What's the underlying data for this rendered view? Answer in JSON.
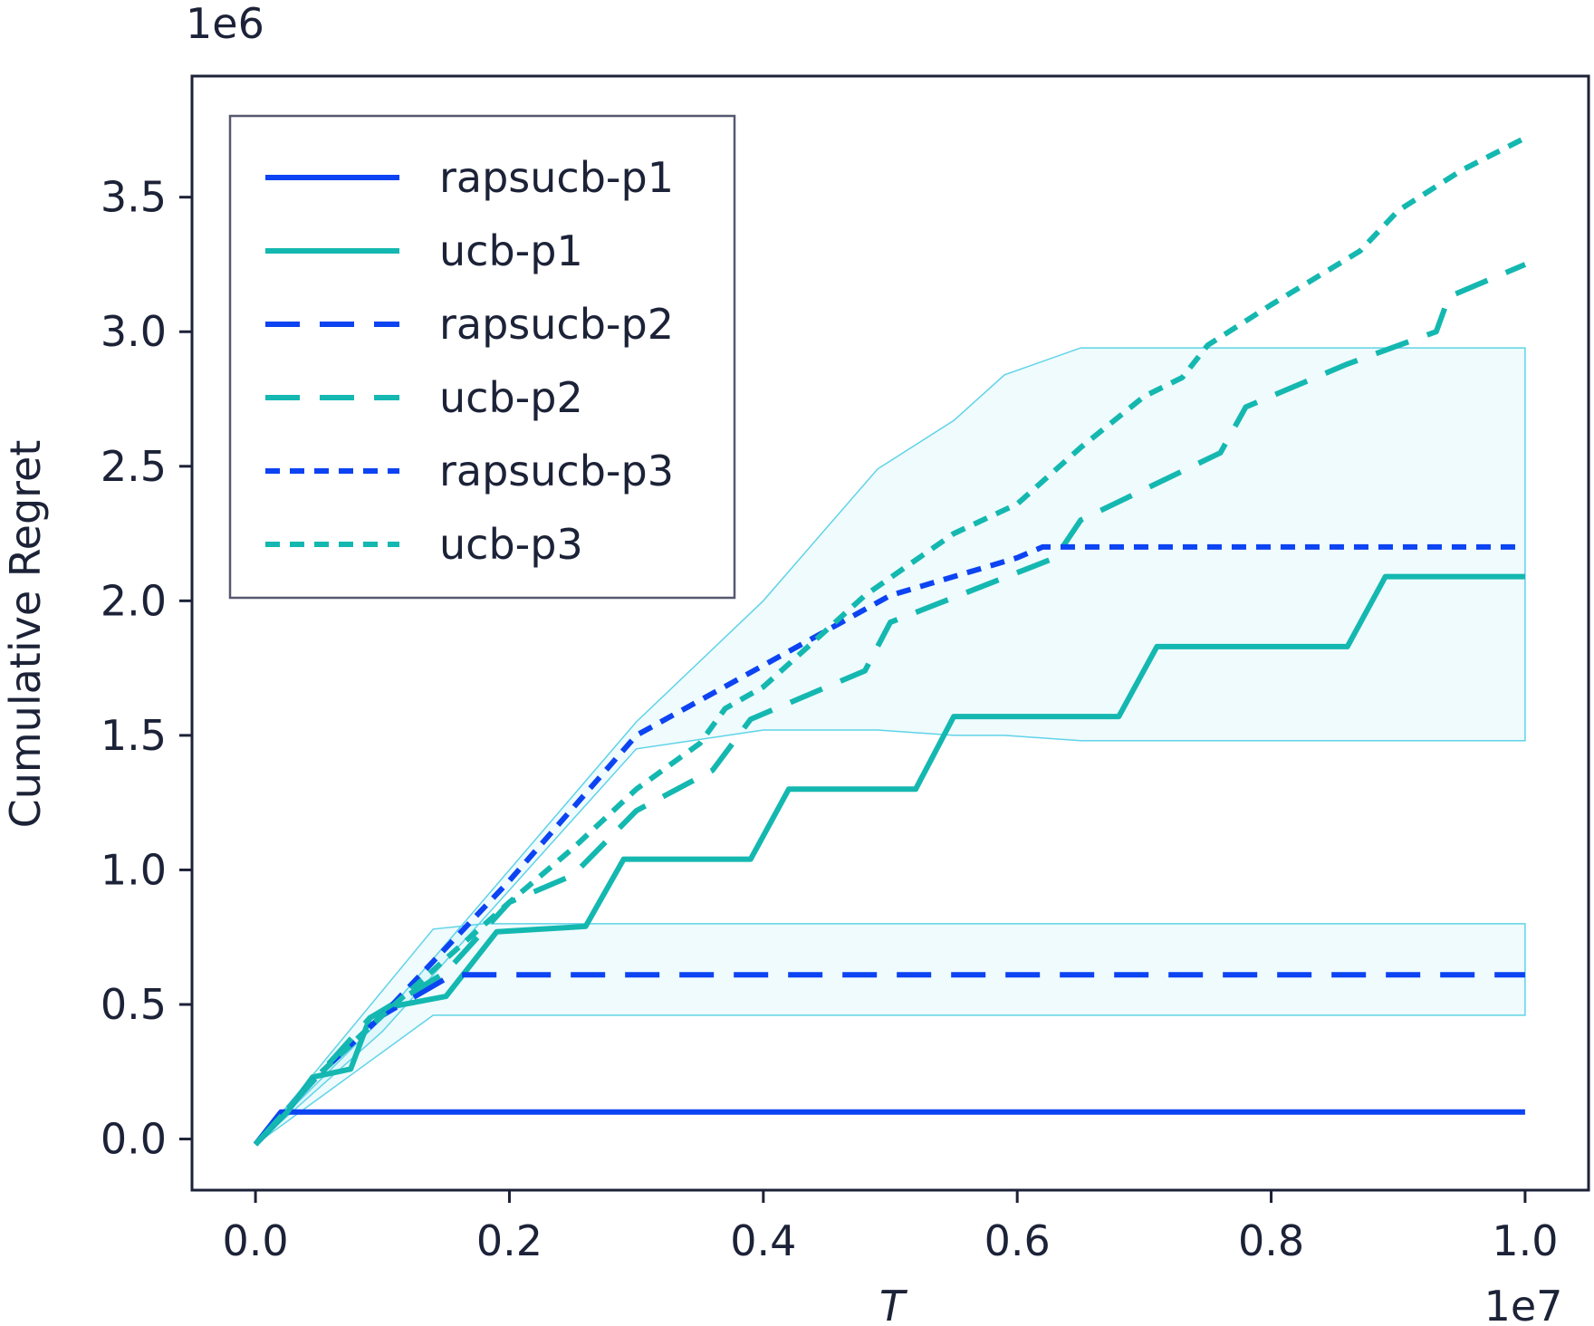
{
  "chart_data": {
    "type": "line",
    "title": "",
    "xlabel": "T",
    "ylabel": "Cumulative Regret",
    "x_offset_label": "1e7",
    "y_offset_label": "1e6",
    "xlim": [
      -0.05,
      1.05
    ],
    "ylim": [
      -0.19,
      3.95
    ],
    "x_ticks": [
      0.0,
      0.2,
      0.4,
      0.6,
      0.8,
      1.0
    ],
    "x_tick_labels": [
      "0.0",
      "0.2",
      "0.4",
      "0.6",
      "0.8",
      "1.0"
    ],
    "y_ticks": [
      0.0,
      0.5,
      1.0,
      1.5,
      2.0,
      2.5,
      3.0,
      3.5
    ],
    "y_tick_labels": [
      "0.0",
      "0.5",
      "1.0",
      "1.5",
      "2.0",
      "2.5",
      "3.0",
      "3.5"
    ],
    "grid": false,
    "legend_position": "top-left",
    "bands": [
      {
        "color": "#5fd3e8",
        "x": [
          0.0,
          0.1,
          0.3,
          0.4,
          0.49,
          0.55,
          0.59,
          0.65,
          1.0
        ],
        "lower": [
          -0.02,
          0.4,
          1.45,
          1.52,
          1.52,
          1.5,
          1.5,
          1.48,
          1.48
        ],
        "upper": [
          -0.02,
          0.45,
          1.55,
          2.0,
          2.49,
          2.67,
          2.84,
          2.94,
          2.94
        ]
      },
      {
        "color": "#5fd3e8",
        "x": [
          0.0,
          0.14,
          0.18,
          1.0
        ],
        "lower": [
          -0.02,
          0.46,
          0.46,
          0.46
        ],
        "upper": [
          -0.02,
          0.78,
          0.8,
          0.8
        ]
      }
    ],
    "series": [
      {
        "name": "rapsucb-p1",
        "color": "#0c43f2",
        "dash": "solid",
        "x": [
          0.0,
          0.02,
          0.05,
          0.1,
          0.2,
          0.3,
          0.5,
          0.7,
          1.0
        ],
        "y": [
          -0.02,
          0.1,
          0.1,
          0.1,
          0.1,
          0.1,
          0.1,
          0.1,
          0.1
        ]
      },
      {
        "name": "ucb-p1",
        "color": "#14b8b0",
        "dash": "solid",
        "x": [
          0.0,
          0.025,
          0.045,
          0.075,
          0.09,
          0.105,
          0.15,
          0.19,
          0.26,
          0.29,
          0.39,
          0.42,
          0.52,
          0.55,
          0.68,
          0.71,
          0.86,
          0.89,
          1.0
        ],
        "y": [
          -0.02,
          0.1,
          0.23,
          0.26,
          0.45,
          0.49,
          0.53,
          0.77,
          0.79,
          1.04,
          1.04,
          1.3,
          1.3,
          1.57,
          1.57,
          1.83,
          1.83,
          2.09,
          2.09
        ]
      },
      {
        "name": "rapsucb-p2",
        "color": "#0c43f2",
        "dash": "long",
        "x": [
          0.0,
          0.05,
          0.1,
          0.155,
          1.0
        ],
        "y": [
          -0.02,
          0.24,
          0.46,
          0.61,
          0.61
        ]
      },
      {
        "name": "ucb-p2",
        "color": "#14b8b0",
        "dash": "long",
        "x": [
          0.0,
          0.05,
          0.09,
          0.15,
          0.2,
          0.25,
          0.3,
          0.36,
          0.39,
          0.48,
          0.5,
          0.63,
          0.65,
          0.76,
          0.78,
          0.86,
          0.93,
          0.94,
          1.0
        ],
        "y": [
          -0.02,
          0.24,
          0.45,
          0.62,
          0.88,
          0.98,
          1.22,
          1.37,
          1.56,
          1.74,
          1.92,
          2.16,
          2.3,
          2.55,
          2.72,
          2.88,
          3.0,
          3.13,
          3.25
        ]
      },
      {
        "name": "rapsucb-p3",
        "color": "#0c43f2",
        "dash": "short",
        "x": [
          0.0,
          0.05,
          0.1,
          0.2,
          0.3,
          0.4,
          0.5,
          0.6,
          0.62,
          1.0
        ],
        "y": [
          -0.02,
          0.24,
          0.46,
          0.96,
          1.5,
          1.76,
          2.02,
          2.16,
          2.2,
          2.2
        ]
      },
      {
        "name": "ucb-p3",
        "color": "#14b8b0",
        "dash": "short",
        "x": [
          0.0,
          0.05,
          0.1,
          0.2,
          0.25,
          0.3,
          0.35,
          0.37,
          0.4,
          0.48,
          0.55,
          0.6,
          0.65,
          0.7,
          0.73,
          0.75,
          0.8,
          0.87,
          0.9,
          0.95,
          1.0
        ],
        "y": [
          -0.02,
          0.24,
          0.46,
          0.88,
          1.08,
          1.3,
          1.47,
          1.6,
          1.68,
          2.02,
          2.25,
          2.36,
          2.57,
          2.76,
          2.83,
          2.95,
          3.1,
          3.3,
          3.45,
          3.6,
          3.72
        ]
      }
    ]
  }
}
